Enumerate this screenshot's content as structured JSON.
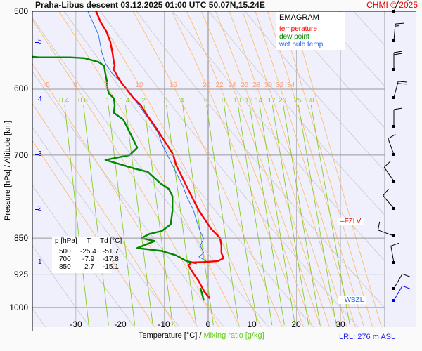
{
  "header": {
    "title": "Praha-Libus   descent   03.12.2025 01:00 UTC   50.07N,15.24E",
    "copyright": "CHMI © 2025"
  },
  "legend": {
    "title": "EMAGRAM",
    "items": [
      {
        "label": "temperature",
        "color": "#ff0000"
      },
      {
        "label": "dew point",
        "color": "#008800"
      },
      {
        "label": "wet bulb temp.",
        "color": "#2266ee"
      }
    ]
  },
  "table": {
    "headers": [
      "p [hPa]",
      "T",
      "Td [°C]"
    ],
    "rows": [
      [
        "500",
        "-25.4",
        "-51.7"
      ],
      [
        "700",
        "-7.9",
        "-17.8"
      ],
      [
        "850",
        "2.7",
        "-15.1"
      ]
    ]
  },
  "levels": {
    "FZLV": "FZLV",
    "WBZL": "WBZL",
    "lrl": "LRL: 276 m ASL"
  },
  "chart_data": {
    "type": "line",
    "title": "EMAGRAM",
    "xlabel": "Temperature [°C]",
    "xlabel_sep": "/",
    "xlabel2": "Mixing ratio [g/kg]",
    "ylabel": "Pressure [hPa]  /  Altitude [km]",
    "xlim": [
      -39.9,
      40.2
    ],
    "ylim": [
      1047,
      500
    ],
    "x_ticks": [
      "-30",
      "-20",
      "-10",
      "0",
      "10",
      "20",
      "30"
    ],
    "y_ticks": [
      "500",
      "600",
      "700",
      "850",
      "925",
      "1000"
    ],
    "altitude_ticks_km": [
      "5",
      "4",
      "3",
      "2",
      "1"
    ],
    "altitude_tick_pressures": [
      540,
      615,
      700,
      795,
      890
    ],
    "moist_adiabat_labels": [
      "-5",
      "0",
      "5",
      "10",
      "15",
      "20",
      "22",
      "24",
      "26",
      "28",
      "30",
      "32",
      "34"
    ],
    "mixing_ratio_labels": [
      "0.4",
      "0.6",
      "1",
      "1.4",
      "2",
      "3",
      "4",
      "6",
      "8",
      "10",
      "12",
      "14",
      "17",
      "20",
      "25",
      "30"
    ],
    "freezing_level_pressure": 820,
    "wet_bulb_zero_pressure": 995,
    "series": [
      {
        "name": "temperature",
        "points": [
          [
            -25.4,
            500
          ],
          [
            -24.4,
            513
          ],
          [
            -23.1,
            524
          ],
          [
            -22.2,
            537
          ],
          [
            -21.7,
            551
          ],
          [
            -21.4,
            563
          ],
          [
            -21.2,
            568
          ],
          [
            -21.5,
            572
          ],
          [
            -20.7,
            581
          ],
          [
            -19.8,
            590
          ],
          [
            -18.5,
            600
          ],
          [
            -16.9,
            613
          ],
          [
            -15.3,
            623
          ],
          [
            -13.7,
            639
          ],
          [
            -12.1,
            654
          ],
          [
            -10.5,
            671
          ],
          [
            -8.9,
            688
          ],
          [
            -7.9,
            700
          ],
          [
            -7.3,
            716
          ],
          [
            -6.1,
            734
          ],
          [
            -4.9,
            753
          ],
          [
            -3.3,
            778
          ],
          [
            -2.1,
            797
          ],
          [
            -0.5,
            817
          ],
          [
            0.6,
            831
          ],
          [
            2.7,
            850
          ],
          [
            3.0,
            865
          ],
          [
            3.0,
            880
          ],
          [
            3.5,
            891
          ],
          [
            2.2,
            897
          ],
          [
            -1.0,
            899
          ],
          [
            -3.8,
            900
          ],
          [
            -4.5,
            906
          ],
          [
            -3.3,
            924
          ],
          [
            -2.2,
            939
          ],
          [
            -0.9,
            963
          ],
          [
            0.4,
            979
          ]
        ]
      },
      {
        "name": "dew point",
        "points": [
          [
            -40,
            556
          ],
          [
            -38.4,
            557
          ],
          [
            -31.3,
            557
          ],
          [
            -28.1,
            558
          ],
          [
            -24.9,
            563
          ],
          [
            -23.6,
            568
          ],
          [
            -23.3,
            579
          ],
          [
            -23.0,
            588
          ],
          [
            -22.8,
            600
          ],
          [
            -22.5,
            606
          ],
          [
            -21.4,
            613
          ],
          [
            -21.2,
            623
          ],
          [
            -21.4,
            634
          ],
          [
            -19.3,
            644
          ],
          [
            -18.5,
            654
          ],
          [
            -17.7,
            665
          ],
          [
            -16.9,
            676
          ],
          [
            -16.1,
            688
          ],
          [
            -17.8,
            700
          ],
          [
            -23.3,
            708
          ],
          [
            -20.1,
            715
          ],
          [
            -16.9,
            722
          ],
          [
            -13.7,
            728
          ],
          [
            -10.8,
            748
          ],
          [
            -8.9,
            758
          ],
          [
            -8.1,
            771
          ],
          [
            -8.1,
            797
          ],
          [
            -8.5,
            823
          ],
          [
            -10.5,
            836
          ],
          [
            -13.4,
            842
          ],
          [
            -15.1,
            850
          ],
          [
            -12.1,
            856
          ],
          [
            -16.1,
            870
          ],
          [
            -10.5,
            876
          ],
          [
            -7.3,
            885
          ],
          [
            -4.9,
            897
          ],
          [
            -2.6,
            902
          ]
        ]
      },
      {
        "name": "dew point surface",
        "points": [
          [
            -1.8,
            955
          ],
          [
            -1.4,
            967
          ],
          [
            -1.0,
            984
          ]
        ]
      },
      {
        "name": "wet bulb temp.",
        "points": [
          [
            -27.3,
            500
          ],
          [
            -24.9,
            528
          ],
          [
            -24.1,
            551
          ],
          [
            -23.3,
            565
          ],
          [
            -21.7,
            579
          ],
          [
            -19.3,
            593
          ],
          [
            -16.9,
            613
          ],
          [
            -14.5,
            634
          ],
          [
            -12.9,
            649
          ],
          [
            -11.3,
            665
          ],
          [
            -10.5,
            682
          ],
          [
            -8.9,
            705
          ],
          [
            -7.3,
            729
          ],
          [
            -5.7,
            753
          ],
          [
            -4.9,
            771
          ],
          [
            -3.3,
            797
          ],
          [
            -2.6,
            817
          ],
          [
            -1.8,
            837
          ],
          [
            -1.0,
            851
          ],
          [
            -1.8,
            865
          ],
          [
            -1.0,
            880
          ],
          [
            -2.1,
            888
          ],
          [
            -0.5,
            897
          ]
        ]
      }
    ],
    "wind_barbs": [
      {
        "dir": 155,
        "speed_kt": 20,
        "level": 1
      },
      {
        "dir": 175,
        "speed_kt": 15,
        "level": 2
      },
      {
        "dir": 180,
        "speed_kt": 20,
        "level": 3
      },
      {
        "dir": 165,
        "speed_kt": 20,
        "level": 4
      },
      {
        "dir": 180,
        "speed_kt": 10,
        "level": 5
      },
      {
        "dir": 200,
        "speed_kt": 10,
        "level": 6
      },
      {
        "dir": 215,
        "speed_kt": 10,
        "level": 7
      },
      {
        "dir": 220,
        "speed_kt": 10,
        "level": 8
      },
      {
        "dir": 250,
        "speed_kt": 10,
        "level": 9
      },
      {
        "dir": 190,
        "speed_kt": 10,
        "level": 10
      },
      {
        "dir": 150,
        "speed_kt": 10,
        "level": 11
      },
      {
        "dir": 150,
        "speed_kt": 10,
        "level": 12,
        "color": "#0000ee"
      }
    ],
    "colors": {
      "isotherm": "#999999",
      "isobar": "#999999",
      "dry_adiabat": "#c8c8c8",
      "moist_adiabat": "#ffb866",
      "mixing_ratio": "#88cc22",
      "moist_label": "#f4a080",
      "mixing_label": "#88cc22",
      "plot_bg": "#f0f0fc"
    }
  }
}
